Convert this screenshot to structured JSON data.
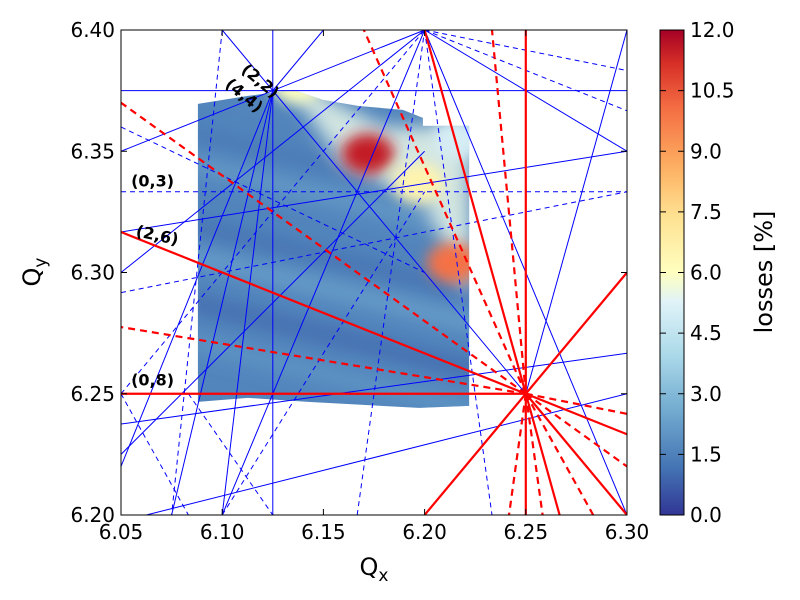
{
  "chart_data": {
    "type": "heatmap",
    "xlabel": "Q",
    "xlabel_sub": "x",
    "ylabel": "Q",
    "ylabel_sub": "y",
    "xlim": [
      6.05,
      6.3
    ],
    "ylim": [
      6.2,
      6.4
    ],
    "x_ticks": [
      6.05,
      6.1,
      6.15,
      6.2,
      6.25,
      6.3
    ],
    "x_tick_labels": [
      "6.05",
      "6.10",
      "6.15",
      "6.20",
      "6.25",
      "6.30"
    ],
    "y_ticks": [
      6.2,
      6.25,
      6.3,
      6.35,
      6.4
    ],
    "y_tick_labels": [
      "6.20",
      "6.25",
      "6.30",
      "6.35",
      "6.40"
    ],
    "colorbar": {
      "label": "losses [%]",
      "min": 0.0,
      "max": 12.0,
      "ticks": [
        0.0,
        1.5,
        3.0,
        4.5,
        6.0,
        7.5,
        9.0,
        10.5,
        12.0
      ],
      "tick_labels": [
        "0.0",
        "1.5",
        "3.0",
        "4.5",
        "6.0",
        "7.5",
        "9.0",
        "10.5",
        "12.0"
      ],
      "colormap": "RdYlBu_r"
    },
    "heatmap_region": {
      "x_range": [
        6.088,
        6.222
      ],
      "y_range": [
        6.245,
        6.372
      ]
    },
    "hotspots": [
      {
        "qx": 6.172,
        "qy": 6.349,
        "loss": 11.5
      },
      {
        "qx": 6.214,
        "qy": 6.304,
        "loss": 10.0
      },
      {
        "qx": 6.137,
        "qy": 6.378,
        "loss": 6.0
      },
      {
        "qx": 6.197,
        "qy": 6.337,
        "loss": 6.5
      },
      {
        "qx": 6.217,
        "qy": 6.355,
        "loss": 5.0
      }
    ],
    "annotations": [
      {
        "text": "(2,2)",
        "qx": 6.109,
        "qy": 6.383,
        "rotate": 40
      },
      {
        "text": "(4,4)",
        "qx": 6.101,
        "qy": 6.377,
        "rotate": 40
      },
      {
        "text": "(0,3)",
        "qx": 6.055,
        "qy": 6.3355
      },
      {
        "text": "(2,6)",
        "qx": 6.057,
        "qy": 6.315,
        "rotate": 12
      },
      {
        "text": "(0,8)",
        "qx": 6.055,
        "qy": 6.2535
      }
    ],
    "resonance_lines": {
      "red_solid": [
        [
          6.25,
          6.25,
          6.05,
          6.3167
        ],
        [
          6.25,
          6.25,
          6.05,
          6.25
        ],
        [
          6.25,
          6.25,
          6.2,
          6.4
        ],
        [
          6.25,
          6.2,
          6.25,
          6.4
        ],
        [
          6.25,
          6.25,
          6.3,
          6.3
        ],
        [
          6.25,
          6.25,
          6.3,
          6.2333
        ],
        [
          6.25,
          6.25,
          6.3,
          6.2
        ],
        [
          6.25,
          6.25,
          6.2,
          6.2
        ],
        [
          6.25,
          6.25,
          6.2667,
          6.2
        ]
      ],
      "red_dashed": [
        [
          6.25,
          6.25,
          6.05,
          6.37
        ],
        [
          6.25,
          6.25,
          6.05,
          6.2775
        ],
        [
          6.25,
          6.25,
          6.17,
          6.4
        ],
        [
          6.25,
          6.25,
          6.2333,
          6.4
        ],
        [
          6.25,
          6.25,
          6.3,
          6.2417
        ],
        [
          6.25,
          6.25,
          6.3,
          6.22
        ],
        [
          6.25,
          6.25,
          6.2833,
          6.2
        ],
        [
          6.25,
          6.25,
          6.2417,
          6.2
        ],
        [
          6.25,
          6.25,
          6.2583,
          6.2
        ]
      ],
      "blue_solid": [
        [
          6.125,
          6.2,
          6.125,
          6.4
        ],
        [
          6.05,
          6.375,
          6.3,
          6.375
        ],
        [
          6.05,
          6.35,
          6.2,
          6.4
        ],
        [
          6.1,
          6.2,
          6.2,
          6.4
        ],
        [
          6.05,
          6.3,
          6.2,
          6.4
        ],
        [
          6.125,
          6.375,
          6.15,
          6.4
        ],
        [
          6.125,
          6.375,
          6.25,
          6.25
        ],
        [
          6.125,
          6.375,
          6.1,
          6.4
        ],
        [
          6.1,
          6.2,
          6.125,
          6.375
        ],
        [
          6.075,
          6.2,
          6.125,
          6.375
        ],
        [
          6.05,
          6.2375,
          6.3,
          6.2667
        ],
        [
          6.0625,
          6.2,
          6.3,
          6.25
        ],
        [
          6.05,
          6.225,
          6.2,
          6.35
        ],
        [
          6.05,
          6.3167,
          6.3,
          6.35
        ],
        [
          6.2,
          6.4,
          6.3,
          6.2
        ],
        [
          6.2,
          6.4,
          6.3,
          6.35
        ],
        [
          6.25,
          6.25,
          6.3,
          6.4
        ],
        [
          6.05,
          6.22,
          6.125,
          6.375
        ]
      ],
      "blue_dashed": [
        [
          6.05,
          6.3333,
          6.3,
          6.3333
        ],
        [
          6.1,
          6.2,
          6.2,
          6.3333
        ],
        [
          6.05,
          6.2917,
          6.3,
          6.3333
        ],
        [
          6.05,
          6.25,
          6.2,
          6.4
        ],
        [
          6.1667,
          6.2,
          6.2,
          6.4
        ],
        [
          6.2,
          6.4,
          6.2333,
          6.2
        ],
        [
          6.2,
          6.4,
          6.3,
          6.3833
        ],
        [
          6.0833,
          6.25,
          6.125,
          6.2
        ],
        [
          6.05,
          6.25,
          6.0833,
          6.2
        ],
        [
          6.1,
          6.4,
          6.075,
          6.2
        ],
        [
          6.05,
          6.36,
          6.2,
          6.3
        ],
        [
          6.2,
          6.4,
          6.3,
          6.3667
        ]
      ]
    }
  }
}
